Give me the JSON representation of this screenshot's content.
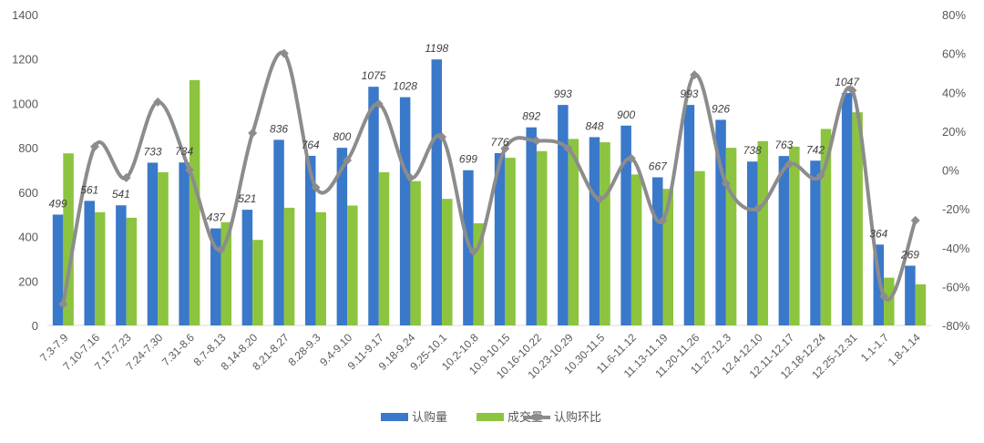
{
  "chart_data": {
    "type": "bar",
    "categories": [
      "7.3-7.9",
      "7.10-7.16",
      "7.17-7.23",
      "7.24-7.30",
      "7.31-8.6",
      "8.7-8.13",
      "8.14-8.20",
      "8.21-8.27",
      "8.28-9.3",
      "9.4-9.10",
      "9.11-9.17",
      "9.18-9.24",
      "9.25-10.1",
      "10.2-10.8",
      "10.9-10.15",
      "10.16-10.22",
      "10.23-10.29",
      "10.30-11.5",
      "11.6-11.12",
      "11.13-11.19",
      "11.20-11.26",
      "11.27-12.3",
      "12.4-12.10",
      "12.11-12.17",
      "12.18-12.24",
      "12.25-12.31",
      "1.1-1.7",
      "1.8-1.14"
    ],
    "series": [
      {
        "name": "认购量",
        "type": "bar",
        "axis": "left",
        "color": "#3a78c9",
        "values": [
          499,
          561,
          541,
          733,
          734,
          437,
          521,
          836,
          764,
          800,
          1075,
          1028,
          1198,
          699,
          776,
          892,
          993,
          848,
          900,
          667,
          993,
          926,
          738,
          763,
          742,
          1047,
          364,
          269
        ]
      },
      {
        "name": "成交量",
        "type": "bar",
        "axis": "left",
        "color": "#8cc43f",
        "values": [
          775,
          510,
          485,
          690,
          1105,
          465,
          385,
          530,
          510,
          540,
          690,
          650,
          570,
          460,
          755,
          785,
          840,
          825,
          680,
          615,
          695,
          800,
          830,
          805,
          885,
          960,
          215,
          185
        ]
      },
      {
        "name": "认购环比",
        "type": "line",
        "axis": "right",
        "color": "#8c8c8c",
        "values": [
          -69,
          12,
          -4,
          35,
          0,
          -41,
          19,
          60,
          -9,
          5,
          34,
          -4,
          17,
          -42,
          11,
          15,
          11,
          -15,
          6,
          -26,
          49,
          -7,
          -20,
          3,
          -3,
          41,
          -65,
          -26
        ]
      }
    ],
    "ylim_left": [
      0,
      1400
    ],
    "yticks_left": [
      "0",
      "200",
      "400",
      "600",
      "800",
      "1000",
      "1200",
      "1400"
    ],
    "ylim_right": [
      -80,
      80
    ],
    "yticks_right": [
      "-80%",
      "-60%",
      "-40%",
      "-20%",
      "0%",
      "20%",
      "40%",
      "60%",
      "80%"
    ],
    "data_labels": "认购量",
    "legend": "bottom",
    "grid": false
  }
}
